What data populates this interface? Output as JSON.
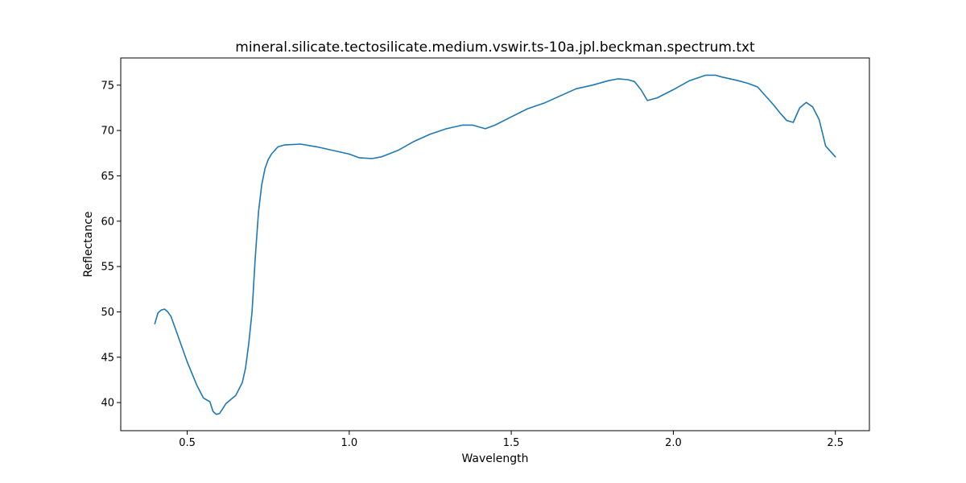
{
  "chart_data": {
    "type": "line",
    "title": "mineral.silicate.tectosilicate.medium.vswir.ts-10a.jpl.beckman.spectrum.txt",
    "xlabel": "Wavelength",
    "ylabel": "Reflectance",
    "xlim": [
      0.295,
      2.605
    ],
    "ylim": [
      36.9,
      78.0
    ],
    "xticks": [
      0.5,
      1.0,
      1.5,
      2.0,
      2.5
    ],
    "xtick_labels": [
      "0.5",
      "1.0",
      "1.5",
      "2.0",
      "2.5"
    ],
    "yticks": [
      40,
      45,
      50,
      55,
      60,
      65,
      70,
      75
    ],
    "ytick_labels": [
      "40",
      "45",
      "50",
      "55",
      "60",
      "65",
      "70",
      "75"
    ],
    "grid": false,
    "series": [
      {
        "color": "#1f77b4",
        "x": [
          0.4,
          0.41,
          0.42,
          0.43,
          0.44,
          0.45,
          0.47,
          0.5,
          0.53,
          0.55,
          0.57,
          0.58,
          0.59,
          0.6,
          0.62,
          0.65,
          0.67,
          0.68,
          0.69,
          0.7,
          0.71,
          0.72,
          0.73,
          0.74,
          0.75,
          0.76,
          0.78,
          0.8,
          0.85,
          0.9,
          0.95,
          1.0,
          1.03,
          1.07,
          1.1,
          1.15,
          1.2,
          1.25,
          1.3,
          1.35,
          1.38,
          1.42,
          1.45,
          1.5,
          1.55,
          1.6,
          1.65,
          1.7,
          1.75,
          1.8,
          1.83,
          1.86,
          1.88,
          1.9,
          1.92,
          1.95,
          2.0,
          2.05,
          2.1,
          2.13,
          2.15,
          2.2,
          2.23,
          2.26,
          2.29,
          2.31,
          2.33,
          2.35,
          2.37,
          2.39,
          2.41,
          2.43,
          2.45,
          2.47,
          2.5
        ],
        "y": [
          48.7,
          49.9,
          50.2,
          50.3,
          50.0,
          49.5,
          47.5,
          44.5,
          41.9,
          40.5,
          40.1,
          39.0,
          38.7,
          38.8,
          39.9,
          40.8,
          42.2,
          43.8,
          46.5,
          50.0,
          56.0,
          61.0,
          64.0,
          65.8,
          66.8,
          67.4,
          68.2,
          68.4,
          68.5,
          68.2,
          67.8,
          67.4,
          67.0,
          66.9,
          67.1,
          67.8,
          68.8,
          69.6,
          70.2,
          70.6,
          70.6,
          70.2,
          70.6,
          71.5,
          72.4,
          73.0,
          73.8,
          74.6,
          75.0,
          75.5,
          75.7,
          75.6,
          75.4,
          74.5,
          73.3,
          73.6,
          74.5,
          75.5,
          76.1,
          76.1,
          75.9,
          75.5,
          75.2,
          74.8,
          73.6,
          72.8,
          71.9,
          71.1,
          70.9,
          72.5,
          73.1,
          72.6,
          71.2,
          68.3,
          67.1
        ]
      }
    ]
  }
}
